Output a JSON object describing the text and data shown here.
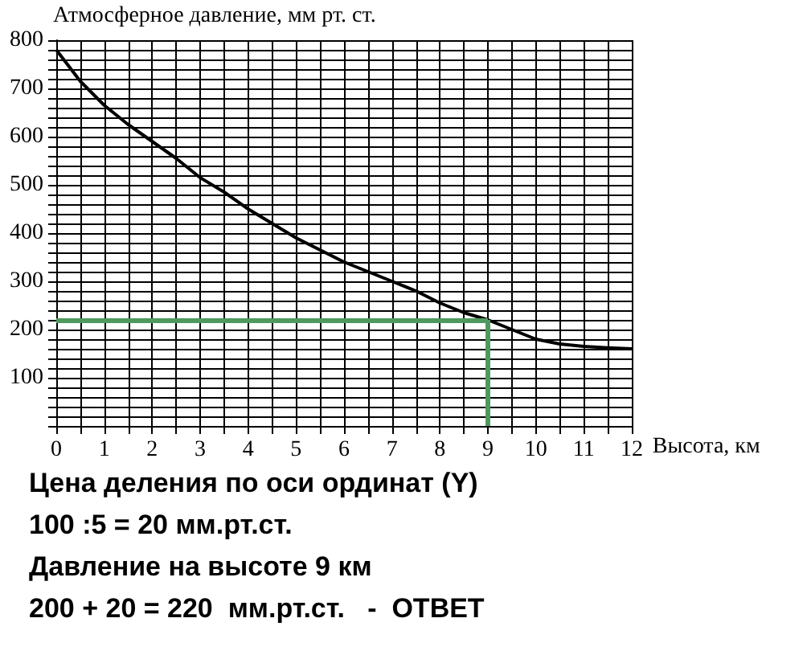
{
  "chart_data": {
    "type": "line",
    "xlabel": "Высота, км",
    "ylabel": "Атмосферное давление, мм рт. ст.",
    "x": [
      0,
      0.5,
      1,
      1.5,
      2,
      2.5,
      3,
      3.5,
      4,
      4.5,
      5,
      5.5,
      6,
      6.5,
      7,
      7.5,
      8,
      8.5,
      9,
      9.5,
      10,
      10.5,
      11,
      11.5,
      12
    ],
    "series": [
      {
        "color": "#000000",
        "values": [
          780,
          715,
          665,
          625,
          590,
          555,
          515,
          485,
          450,
          420,
          390,
          365,
          340,
          320,
          300,
          280,
          255,
          235,
          220,
          200,
          180,
          170,
          165,
          162,
          160
        ]
      }
    ],
    "xlim": [
      0,
      12
    ],
    "ylim": [
      0,
      800
    ],
    "xticks": [
      0,
      {
        "value": 0.5,
        "label": null
      },
      1,
      {
        "value": 1.5,
        "label": null
      },
      2,
      {
        "value": 2.5,
        "label": null
      },
      3,
      {
        "value": 3.5,
        "label": null
      },
      4,
      {
        "value": 4.5,
        "label": null
      },
      5,
      {
        "value": 5.5,
        "label": null
      },
      6,
      {
        "value": 6.5,
        "label": null
      },
      7,
      {
        "value": 7.5,
        "label": null
      },
      8,
      {
        "value": 8.5,
        "label": null
      },
      9,
      {
        "value": 9.5,
        "label": null
      },
      10,
      {
        "value": 10.5,
        "label": null
      },
      11,
      {
        "value": 11.5,
        "label": null
      },
      12
    ],
    "yticks": [
      {
        "value": 0,
        "label": null
      },
      {
        "value": 20,
        "label": null
      },
      {
        "value": 40,
        "label": null
      },
      {
        "value": 60,
        "label": null
      },
      {
        "value": 80,
        "label": null
      },
      100,
      {
        "value": 120,
        "label": null
      },
      {
        "value": 140,
        "label": null
      },
      {
        "value": 160,
        "label": null
      },
      {
        "value": 180,
        "label": null
      },
      200,
      {
        "value": 220,
        "label": null
      },
      {
        "value": 240,
        "label": null
      },
      {
        "value": 260,
        "label": null
      },
      {
        "value": 280,
        "label": null
      },
      300,
      {
        "value": 320,
        "label": null
      },
      {
        "value": 340,
        "label": null
      },
      {
        "value": 360,
        "label": null
      },
      {
        "value": 380,
        "label": null
      },
      400,
      {
        "value": 420,
        "label": null
      },
      {
        "value": 440,
        "label": null
      },
      {
        "value": 460,
        "label": null
      },
      {
        "value": 480,
        "label": null
      },
      500,
      {
        "value": 520,
        "label": null
      },
      {
        "value": 540,
        "label": null
      },
      {
        "value": 560,
        "label": null
      },
      {
        "value": 580,
        "label": null
      },
      600,
      {
        "value": 620,
        "label": null
      },
      {
        "value": 640,
        "label": null
      },
      {
        "value": 660,
        "label": null
      },
      {
        "value": 680,
        "label": null
      },
      700,
      {
        "value": 720,
        "label": null
      },
      {
        "value": 740,
        "label": null
      },
      {
        "value": 760,
        "label": null
      },
      {
        "value": 780,
        "label": null
      },
      800
    ],
    "ref_lines": [
      {
        "axis": "y",
        "value": 220,
        "color": "#4e9a5e"
      },
      {
        "axis": "x",
        "value": 9,
        "color": "#4e9a5e"
      }
    ],
    "grid": true,
    "marker": "none",
    "line_style": "solid",
    "annotations": [
      "Цена деления по оси ординат (Y)",
      "100 :5 = 20 мм.рт.ст.",
      "Давление на высоте 9 км",
      "200 + 20 = 220  мм.рт.ст.   -  ОТВЕТ"
    ]
  }
}
